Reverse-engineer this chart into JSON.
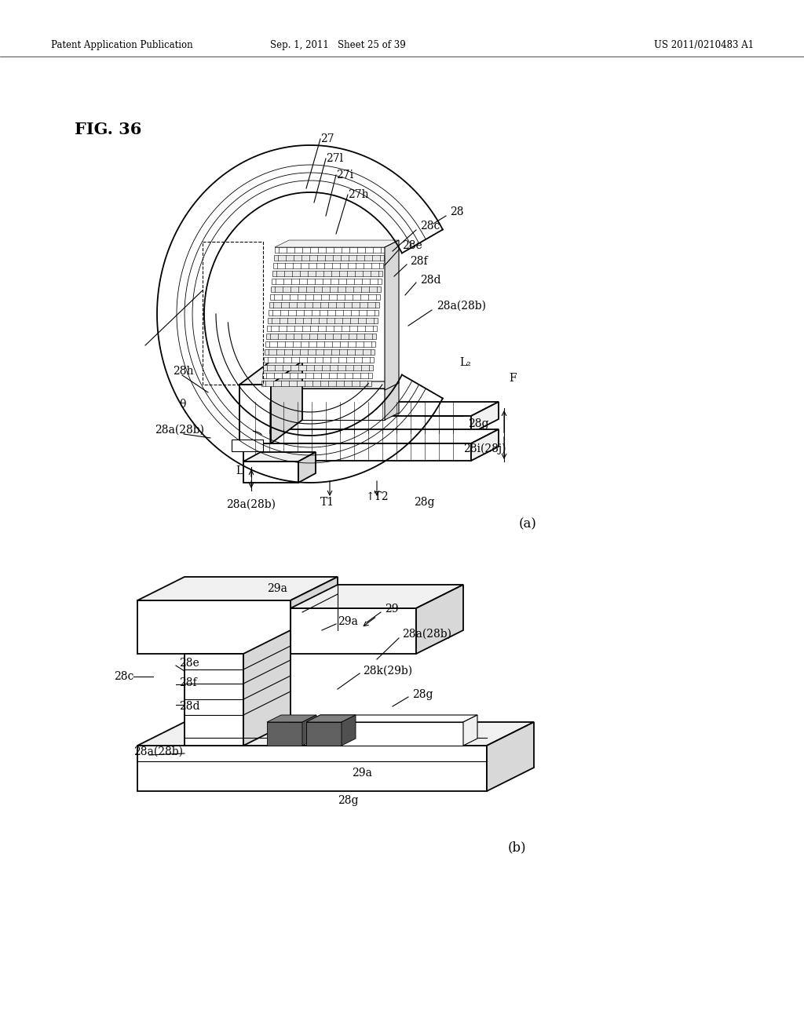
{
  "bg_color": "#ffffff",
  "header_left": "Patent Application Publication",
  "header_mid": "Sep. 1, 2011   Sheet 25 of 39",
  "header_right": "US 2011/0210483 A1",
  "fig_label": "FIG. 36",
  "label_a": "(a)",
  "label_b": "(b)",
  "figsize": [
    10.24,
    13.2
  ],
  "dpi": 100
}
